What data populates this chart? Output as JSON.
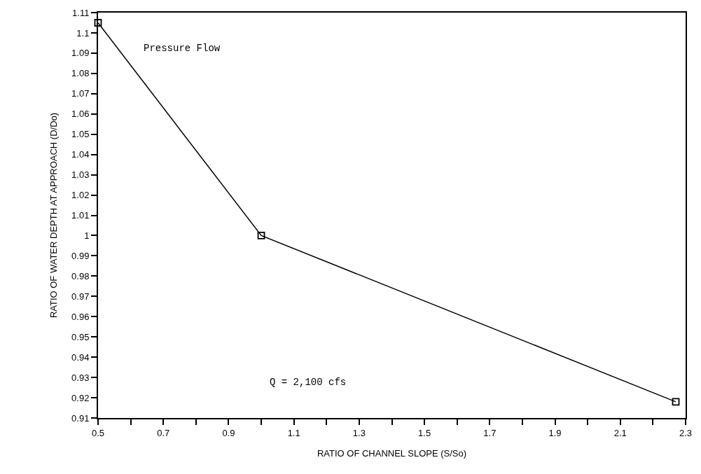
{
  "chart_data": {
    "type": "line",
    "xlabel": "RATIO OF CHANNEL SLOPE (S/So)",
    "ylabel": "RATIO OF WATER DEPTH AT APPROACH (D/Do)",
    "x": [
      0.5,
      1.0,
      2.27
    ],
    "values": [
      1.105,
      1.0,
      0.918
    ],
    "color": "#000000",
    "marker": "square",
    "line_style": "solid",
    "grid": false,
    "xlim": [
      0.5,
      2.3
    ],
    "xticks": [
      0.5,
      {
        "value": 0.6,
        "label": null
      },
      0.7,
      {
        "value": 0.8,
        "label": null
      },
      0.9,
      {
        "value": 1.0,
        "label": null
      },
      1.1,
      {
        "value": 1.2,
        "label": null
      },
      1.3,
      {
        "value": 1.4,
        "label": null
      },
      1.5,
      {
        "value": 1.6,
        "label": null
      },
      1.7,
      {
        "value": 1.8,
        "label": null
      },
      1.9,
      {
        "value": 2.0,
        "label": null
      },
      2.1,
      {
        "value": 2.2,
        "label": null
      },
      2.3
    ],
    "ylim": [
      0.91,
      1.11
    ],
    "yticks": [
      0.91,
      0.92,
      0.93,
      0.94,
      0.95,
      0.96,
      0.97,
      0.98,
      0.99,
      1,
      1.01,
      1.02,
      1.03,
      1.04,
      1.05,
      1.06,
      1.07,
      1.08,
      1.09,
      1.1,
      1.11
    ],
    "annotations": [
      "Pressure Flow",
      "Q = 2,100 cfs"
    ]
  }
}
